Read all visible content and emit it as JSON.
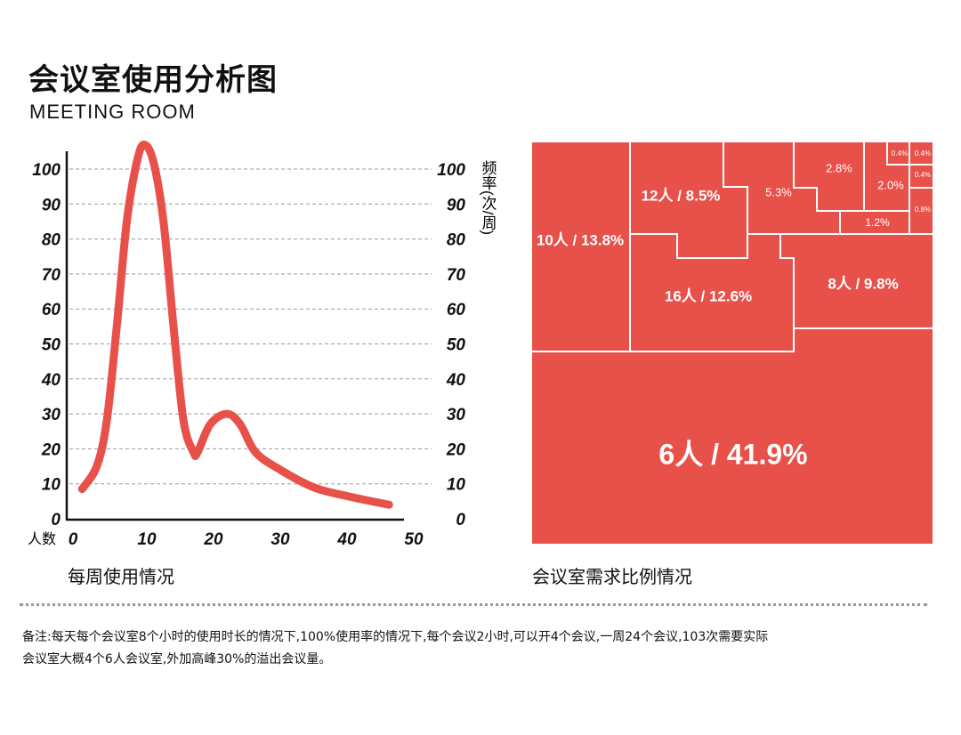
{
  "header": {
    "title": "会议室使用分析图",
    "subtitle": "MEETING ROOM"
  },
  "chart_data": [
    {
      "type": "line",
      "title": "每周使用情况",
      "xlabel": "人数",
      "ylabel": "频率(次/周)",
      "xlim": [
        0,
        50
      ],
      "ylim": [
        0,
        100
      ],
      "x_ticks": [
        "0",
        "10",
        "20",
        "30",
        "40",
        "50"
      ],
      "y_ticks": [
        "0",
        "10",
        "20",
        "30",
        "40",
        "50",
        "60",
        "70",
        "80",
        "90",
        "100"
      ],
      "grid": "horizontal dashed",
      "color": "#E8504A",
      "x": [
        0.3,
        2.5,
        4,
        5.5,
        7,
        8.5,
        9.6,
        11,
        12.5,
        14,
        15.5,
        17,
        17.6,
        19.5,
        22,
        24,
        26.3,
        30,
        35,
        40,
        46.3
      ],
      "y": [
        8.5,
        15,
        28,
        55,
        85,
        102,
        107,
        102,
        85,
        55,
        28,
        19,
        19,
        27,
        30,
        27,
        19,
        14,
        9,
        6.5,
        4
      ]
    },
    {
      "type": "treemap",
      "title": "会议室需求比例情况",
      "color": "#E8504A",
      "items": [
        {
          "label": "6人 / 41.9%",
          "value": 41.9
        },
        {
          "label": "10人 / 13.8%",
          "value": 13.8
        },
        {
          "label": "16人 / 12.6%",
          "value": 12.6
        },
        {
          "label": "8人 / 9.8%",
          "value": 9.8
        },
        {
          "label": "12人 / 8.5%",
          "value": 8.5
        },
        {
          "label": "5.3%",
          "value": 5.3
        },
        {
          "label": "2.8%",
          "value": 2.8
        },
        {
          "label": "2.0%",
          "value": 2.0
        },
        {
          "label": "1.2%",
          "value": 1.2
        },
        {
          "label": "0.8%",
          "value": 0.8
        },
        {
          "label": "0.4%",
          "value": 0.4
        },
        {
          "label": "0.4%",
          "value": 0.4
        },
        {
          "label": "0.4%",
          "value": 0.4
        }
      ]
    }
  ],
  "note": {
    "line1": "备注:每天每个会议室8个小时的使用时长的情况下,100%使用率的情况下,每个会议2小时,可以开4个会议,一周24个会议,103次需要实际",
    "line2": "会议室大概4个6人会议室,外加高峰30%的溢出会议量。"
  }
}
